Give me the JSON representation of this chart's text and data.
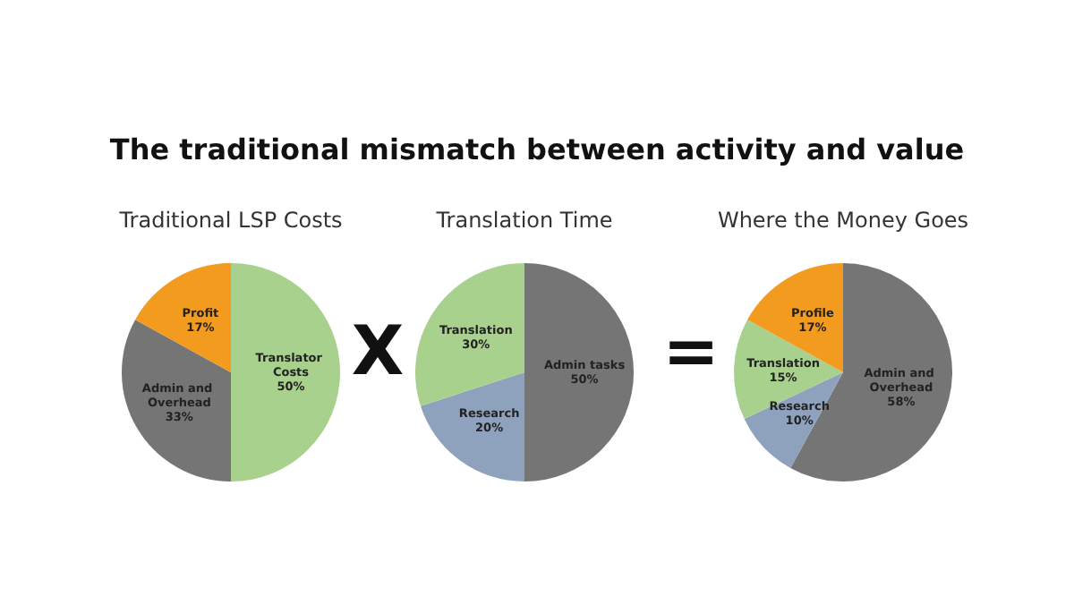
{
  "chart_data": [
    {
      "type": "pie",
      "title": "The traditional mismatch between activity and value",
      "subtitle": "Traditional LSP Costs",
      "categories": [
        "Translator Costs",
        "Admin and Overhead",
        "Profit"
      ],
      "values": [
        50,
        33,
        17
      ],
      "value_labels": [
        "50%",
        "33%",
        "17%"
      ],
      "colors": [
        "#a9d18e",
        "#757575",
        "#f29b1f"
      ],
      "legend": false,
      "annotations": [
        "X"
      ]
    },
    {
      "type": "pie",
      "title": "Translation Time",
      "categories": [
        "Admin tasks",
        "Research",
        "Translation"
      ],
      "values": [
        50,
        20,
        30
      ],
      "value_labels": [
        "50%",
        "20%",
        "30%"
      ],
      "colors": [
        "#757575",
        "#8ea2bd",
        "#a9d18e"
      ],
      "legend": false,
      "annotations": [
        "="
      ]
    },
    {
      "type": "pie",
      "title": "Where the Money Goes",
      "categories": [
        "Admin and Overhead",
        "Research",
        "Translation",
        "Profile"
      ],
      "values": [
        58,
        10,
        15,
        17
      ],
      "value_labels": [
        "58%",
        "10%",
        "15%",
        "17%"
      ],
      "colors": [
        "#757575",
        "#8ea2bd",
        "#a9d18e",
        "#f29b1f"
      ],
      "legend": false
    }
  ]
}
